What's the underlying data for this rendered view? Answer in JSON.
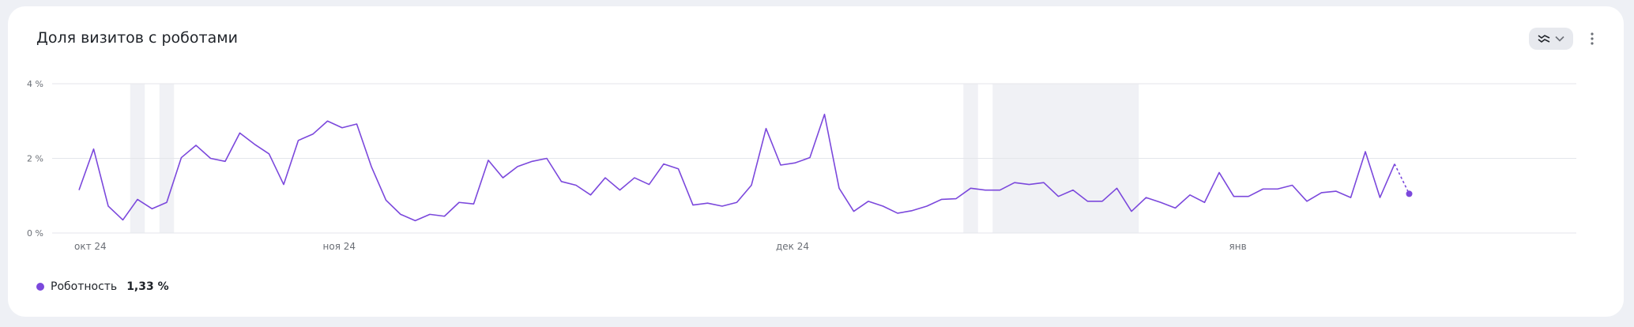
{
  "title": "Доля визитов с роботами",
  "icons": {
    "chart_type": "line-chart-icon",
    "dropdown": "chevron-down-icon",
    "menu": "kebab-menu-icon"
  },
  "legend": {
    "label": "Роботность",
    "value": "1,33 %"
  },
  "colors": {
    "series": "#7b48dc",
    "grid": "#e4e6eb",
    "shade": "#f0f1f5",
    "axis_text": "#6b6f76"
  },
  "chart_data": {
    "type": "line",
    "title": "",
    "ylim": [
      0,
      4
    ],
    "y_ticks": [
      "0 %",
      "2 %",
      "4 %"
    ],
    "x_ticks": [
      {
        "label": "окт 24",
        "index": 0
      },
      {
        "label": "ноя 24",
        "index": 17
      },
      {
        "label": "дек 24",
        "index": 48
      },
      {
        "label": "янв",
        "index": 79
      }
    ],
    "partial_last_point": true,
    "shaded_ranges": [
      [
        3.5,
        4.5
      ],
      [
        5.5,
        6.5
      ],
      [
        60.5,
        61.5
      ],
      [
        62.5,
        72.5
      ]
    ],
    "series": [
      {
        "name": "Роботность",
        "values": [
          1.15,
          2.25,
          0.72,
          0.35,
          0.9,
          0.65,
          0.82,
          2.02,
          2.35,
          2.0,
          1.92,
          2.68,
          2.38,
          2.12,
          1.3,
          2.48,
          2.65,
          3.0,
          2.82,
          2.92,
          1.78,
          0.88,
          0.5,
          0.33,
          0.5,
          0.45,
          0.82,
          0.78,
          1.95,
          1.48,
          1.78,
          1.92,
          2.0,
          1.38,
          1.28,
          1.02,
          1.48,
          1.15,
          1.48,
          1.3,
          1.85,
          1.72,
          0.75,
          0.8,
          0.72,
          0.82,
          1.28,
          2.8,
          1.82,
          1.88,
          2.02,
          3.18,
          1.2,
          0.58,
          0.85,
          0.72,
          0.53,
          0.6,
          0.72,
          0.9,
          0.92,
          1.2,
          1.15,
          1.15,
          1.35,
          1.3,
          1.35,
          0.98,
          1.15,
          0.85,
          0.85,
          1.2,
          0.58,
          0.95,
          0.82,
          0.67,
          1.02,
          0.82,
          1.62,
          0.98,
          0.98,
          1.18,
          1.18,
          1.28,
          0.85,
          1.08,
          1.12,
          0.95,
          2.18,
          0.95,
          1.85,
          1.05
        ]
      }
    ]
  }
}
